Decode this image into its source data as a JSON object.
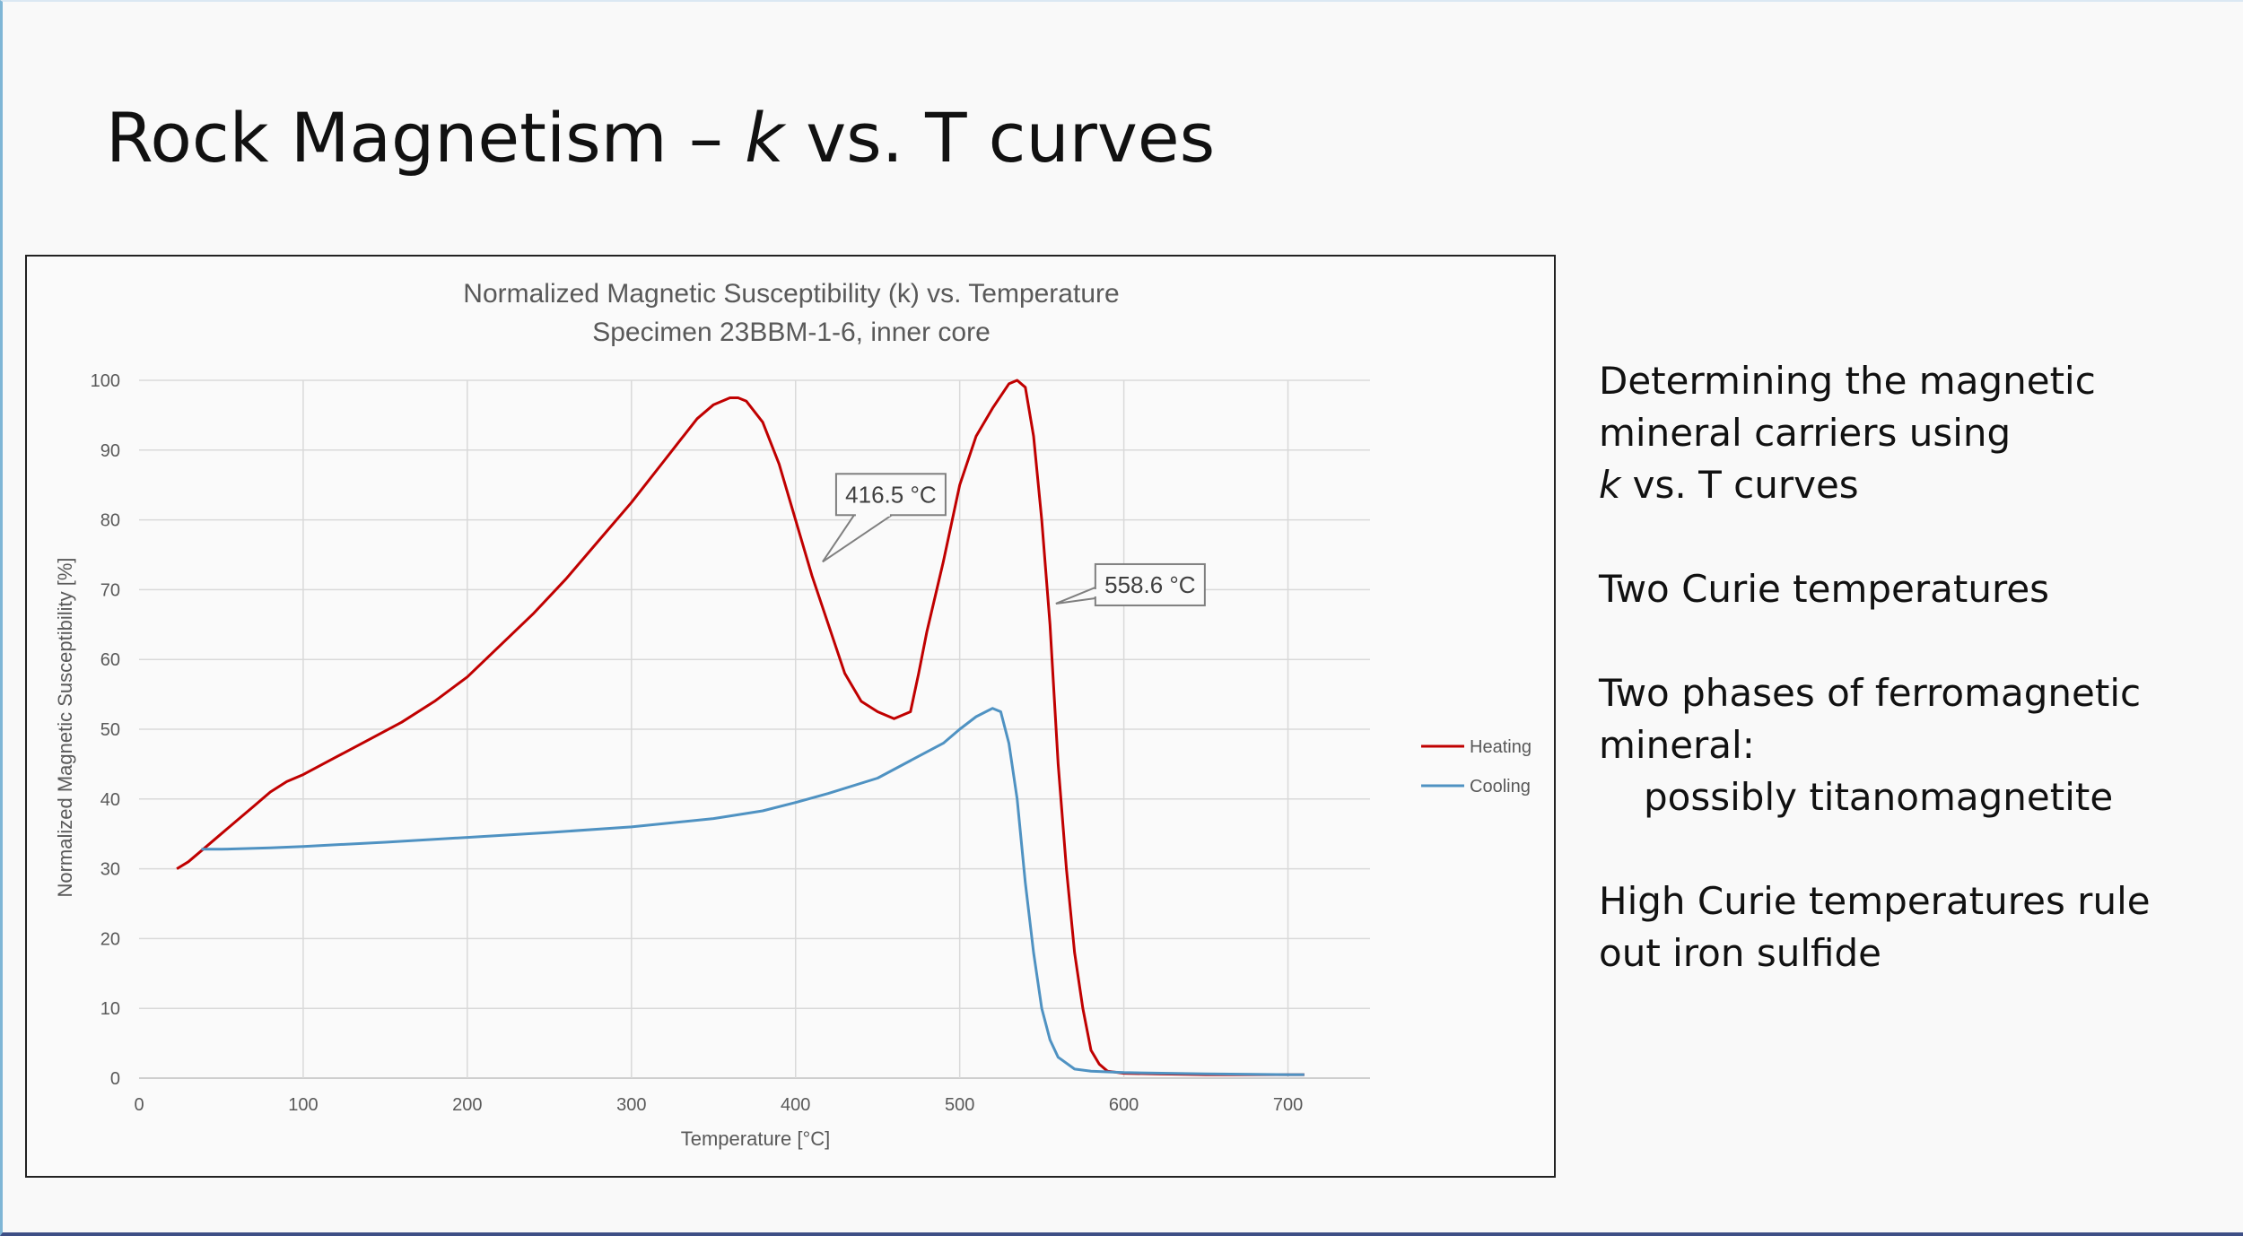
{
  "slide": {
    "title_pre": "Rock Magnetism – ",
    "title_k": "k",
    "title_post": " vs. T curves"
  },
  "bullets": {
    "p1_line1": "Determining the magnetic",
    "p1_line2": "mineral carriers using",
    "p1_k": "k",
    "p1_line3": " vs. T curves",
    "p2": "Two Curie temperatures",
    "p3_line1": "Two phases of ferromagnetic",
    "p3_line2": "mineral:",
    "p3_line3": "possibly titanomagnetite",
    "p4_line1": "High Curie temperatures rule",
    "p4_line2": "out iron sulfide"
  },
  "chart_data": {
    "type": "line",
    "title": "Normalized Magnetic Susceptibility (k) vs. Temperature",
    "subtitle": "Specimen 23BBM-1-6, inner core",
    "xlabel": "Temperature [°C]",
    "ylabel": "Normalized Magnetic Susceptibility [%]",
    "xlim": [
      0,
      750
    ],
    "ylim": [
      0,
      100
    ],
    "xticks": [
      0,
      100,
      200,
      300,
      400,
      500,
      600,
      700
    ],
    "yticks": [
      0,
      10,
      20,
      30,
      40,
      50,
      60,
      70,
      80,
      90,
      100
    ],
    "grid": true,
    "legend_position": "right",
    "series": [
      {
        "name": "Heating",
        "color": "#c00000",
        "x": [
          23,
          30,
          40,
          50,
          60,
          70,
          80,
          90,
          100,
          120,
          140,
          160,
          180,
          200,
          220,
          240,
          260,
          280,
          300,
          310,
          320,
          330,
          340,
          350,
          360,
          365,
          370,
          380,
          390,
          400,
          410,
          420,
          430,
          440,
          450,
          460,
          470,
          475,
          480,
          490,
          500,
          510,
          520,
          530,
          535,
          540,
          545,
          550,
          555,
          560,
          565,
          570,
          575,
          580,
          585,
          590,
          600,
          620,
          650,
          680,
          710
        ],
        "y": [
          30,
          31,
          33,
          35,
          37,
          39,
          41,
          42.5,
          43.5,
          46,
          48.5,
          51,
          54,
          57.5,
          62,
          66.5,
          71.5,
          77,
          82.5,
          85.5,
          88.5,
          91.5,
          94.5,
          96.5,
          97.5,
          97.5,
          97,
          94,
          88,
          80,
          72,
          65,
          58,
          54,
          52.5,
          51.5,
          52.5,
          58,
          64,
          74,
          85,
          92,
          96,
          99.5,
          100,
          99,
          92,
          80,
          65,
          45,
          30,
          18,
          10,
          4,
          2,
          1,
          0.7,
          0.6,
          0.5,
          0.5,
          0.5
        ],
        "annotation": {
          "label": "416.5 °C",
          "x": 416.5,
          "y": 74
        }
      },
      {
        "name": "Cooling",
        "color": "#4f92c2",
        "x": [
          38,
          50,
          80,
          100,
          150,
          200,
          250,
          300,
          350,
          380,
          400,
          420,
          450,
          470,
          490,
          500,
          510,
          520,
          525,
          530,
          535,
          540,
          545,
          550,
          555,
          560,
          570,
          580,
          600,
          650,
          700,
          710
        ],
        "y": [
          32.8,
          32.8,
          33,
          33.2,
          33.8,
          34.5,
          35.2,
          36,
          37.2,
          38.3,
          39.5,
          40.8,
          43,
          45.5,
          48,
          50,
          51.8,
          53,
          52.5,
          48,
          40,
          28,
          18,
          10,
          5.5,
          3,
          1.3,
          1,
          0.8,
          0.6,
          0.5,
          0.5
        ],
        "annotation": {
          "label": "558.6 °C",
          "x": 558.6,
          "y": 68
        }
      }
    ]
  }
}
